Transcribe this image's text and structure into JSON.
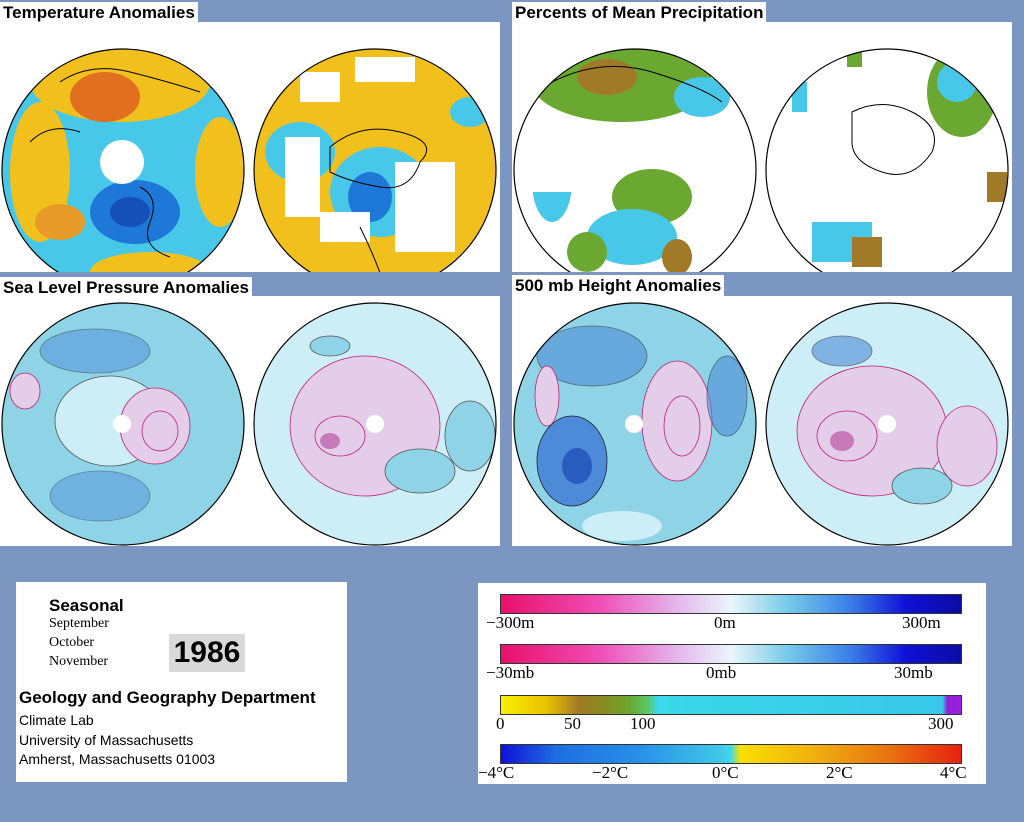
{
  "panels": {
    "temperature": {
      "title": "Temperature Anomalies"
    },
    "precipitation": {
      "title": "Percents of Mean Precipitation"
    },
    "sea_level_pressure": {
      "title": "Sea Level Pressure Anomalies"
    },
    "height_500mb": {
      "title": "500 mb Height Anomalies"
    }
  },
  "info": {
    "period_label": "Seasonal",
    "months": [
      "September",
      "October",
      "November"
    ],
    "year": "1986",
    "department": "Geology and Geography Department",
    "address_lines": [
      "Climate Lab",
      "University of Massachusetts",
      "Amherst, Massachusetts 01003"
    ]
  },
  "legends": {
    "height": {
      "labels": [
        "−300m",
        "0m",
        "300m"
      ]
    },
    "pressure": {
      "labels": [
        "−30mb",
        "0mb",
        "30mb"
      ]
    },
    "precip": {
      "labels": [
        "0",
        "50",
        "100",
        "300"
      ]
    },
    "temp": {
      "labels": [
        "−4°C",
        "−2°C",
        "0°C",
        "2°C",
        "4°C"
      ]
    }
  },
  "colors": {
    "background": "#7b96c0",
    "temp_warm": "#f2c01c",
    "temp_hot": "#e07020",
    "temp_cool": "#48c8e8",
    "temp_cold": "#1e78d8",
    "precip_green": "#6aa832",
    "precip_brown": "#a07a28",
    "anom_light": "#cdeef6",
    "anom_mid": "#8ed4e6",
    "anom_neg_dark": "#4d8ad8",
    "anom_pos": "#e3cde8",
    "anom_pos_dark": "#c77ab8"
  }
}
